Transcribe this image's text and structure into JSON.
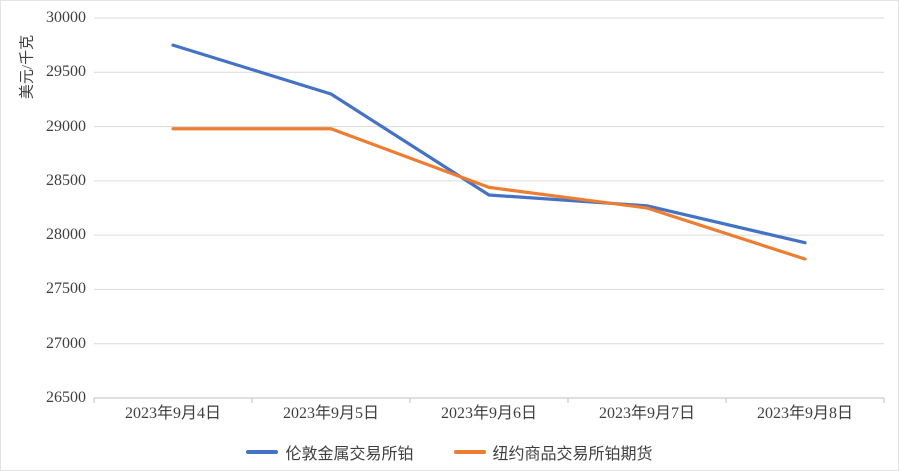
{
  "chart_data": {
    "type": "line",
    "title": "",
    "xlabel": "",
    "ylabel": "美元/千克",
    "categories": [
      "2023年9月4日",
      "2023年9月5日",
      "2023年9月6日",
      "2023年9月7日",
      "2023年9月8日"
    ],
    "series": [
      {
        "name": "伦敦金属交易所铂",
        "color": "#4472C4",
        "values": [
          29750,
          29300,
          28370,
          28270,
          27930
        ]
      },
      {
        "name": "纽约商品交易所铂期货",
        "color": "#ED7D31",
        "values": [
          28980,
          28980,
          28440,
          28250,
          27780
        ]
      }
    ],
    "ylim": [
      26500,
      30000
    ],
    "ytick_step": 500,
    "yticks": [
      30000,
      29500,
      29000,
      28500,
      28000,
      27500,
      27000,
      26500
    ],
    "grid": true,
    "gridline_color": "#d9d9d9",
    "axis_line_color": "#bfbfbf",
    "text_color": "#3f3f3f",
    "legend_position": "bottom"
  }
}
